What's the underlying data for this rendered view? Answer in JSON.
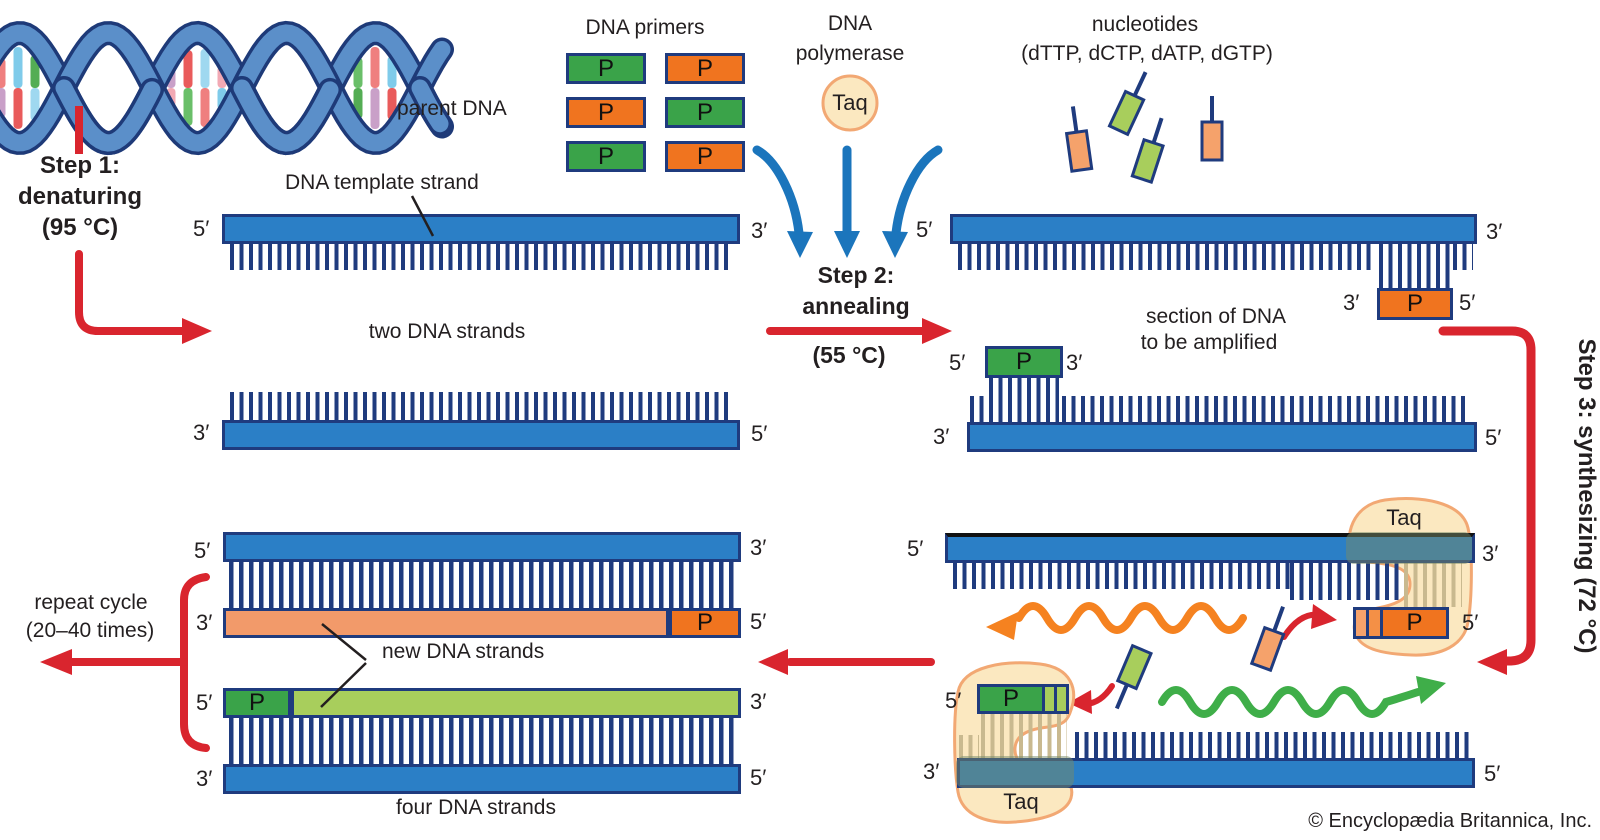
{
  "colors": {
    "strand_blue": "#2B7FC6",
    "navy_border": "#1F3B7E",
    "primer_green": "#3AA349",
    "primer_orange": "#F0741F",
    "new_strand_salmon": "#F29A6A",
    "new_strand_light_green": "#A8CE5C",
    "taq_fill": "#FBE8C0",
    "taq_border": "#F2A873",
    "arrow_red": "#D9252E",
    "arrow_blue": "#1B75BC",
    "wave_orange": "#F58220",
    "wave_green": "#3FAE49",
    "tan_teeth": "#C9B98F",
    "text": "#231F20"
  },
  "helix": {
    "ribbon": "#5b8fc9",
    "outline": "#1e3a78",
    "rung_palette": [
      "#ef7f7f",
      "#7fcbea",
      "#54ad54",
      "#c9a0c8",
      "#e95b5b",
      "#9fd8f0",
      "#f2a9b4",
      "#6abf69"
    ]
  },
  "labels": {
    "parent_dna": "parent DNA",
    "dna_template_strand": "DNA template strand",
    "two_dna_strands": "two DNA strands",
    "section_amplified_1": "section of DNA",
    "section_amplified_2": "to be amplified",
    "new_dna_strands": "new DNA strands",
    "four_dna_strands": "four DNA strands",
    "repeat_cycle_1": "repeat cycle",
    "repeat_cycle_2": "(20–40 times)",
    "copyright": "© Encyclopædia Britannica, Inc."
  },
  "steps": {
    "step1_l1": "Step 1:",
    "step1_l2": "denaturing",
    "step1_l3": "(95 °C)",
    "step2_l1": "Step 2:",
    "step2_l2": "annealing",
    "step2_l3": "(55 °C)",
    "step3": "Step 3: synthesizing (72 °C)"
  },
  "reagents": {
    "dna_primers_label": "DNA primers",
    "primer_letter": "P",
    "primers_grid": [
      [
        "green",
        "orange"
      ],
      [
        "orange",
        "green"
      ],
      [
        "green",
        "orange"
      ]
    ],
    "dna_polymerase_l1": "DNA",
    "dna_polymerase_l2": "polymerase",
    "taq_label": "Taq",
    "nucleotides_l1": "nucleotides",
    "nucleotides_l2": "(dTTP, dCTP, dATP, dGTP)"
  },
  "ends": {
    "five": "5′",
    "three": "3′"
  }
}
